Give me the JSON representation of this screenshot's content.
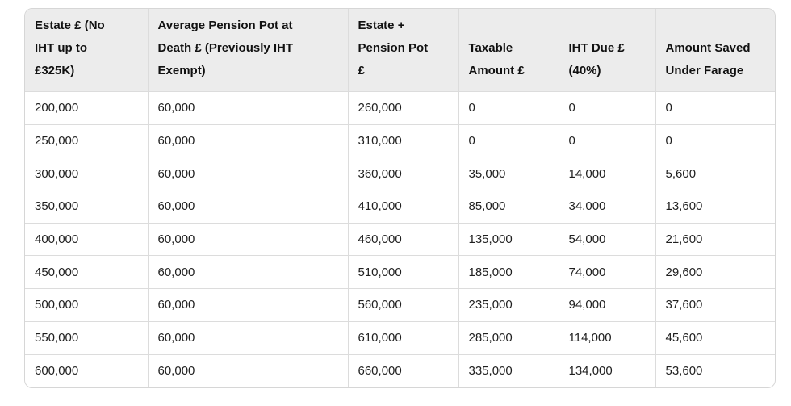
{
  "chart_data": {
    "type": "table",
    "title": "",
    "columns": [
      "Estate £ (No\nIHT up to\n£325K)",
      "Average Pension Pot at\nDeath £ (Previously IHT\nExempt)",
      "Estate +\nPension Pot\n£",
      "Taxable\nAmount £",
      "IHT Due £\n(40%)",
      "Amount Saved\nUnder Farage"
    ],
    "rows": [
      [
        "200,000",
        "60,000",
        "260,000",
        "0",
        "0",
        "0"
      ],
      [
        "250,000",
        "60,000",
        "310,000",
        "0",
        "0",
        "0"
      ],
      [
        "300,000",
        "60,000",
        "360,000",
        "35,000",
        "14,000",
        "5,600"
      ],
      [
        "350,000",
        "60,000",
        "410,000",
        "85,000",
        "34,000",
        "13,600"
      ],
      [
        "400,000",
        "60,000",
        "460,000",
        "135,000",
        "54,000",
        "21,600"
      ],
      [
        "450,000",
        "60,000",
        "510,000",
        "185,000",
        "74,000",
        "29,600"
      ],
      [
        "500,000",
        "60,000",
        "560,000",
        "235,000",
        "94,000",
        "37,600"
      ],
      [
        "550,000",
        "60,000",
        "610,000",
        "285,000",
        "114,000",
        "45,600"
      ],
      [
        "600,000",
        "60,000",
        "660,000",
        "335,000",
        "134,000",
        "53,600"
      ]
    ],
    "layout": {
      "grid": "on",
      "header_align": "bottom-left",
      "body_align": "middle-left"
    }
  },
  "colors": {
    "header_bg": "#ececec",
    "border_outer": "#d6d6d6",
    "border_inner": "#dcdcdc",
    "header_text": "#111111",
    "body_text": "#1f1f1f",
    "page_bg": "#ffffff"
  }
}
